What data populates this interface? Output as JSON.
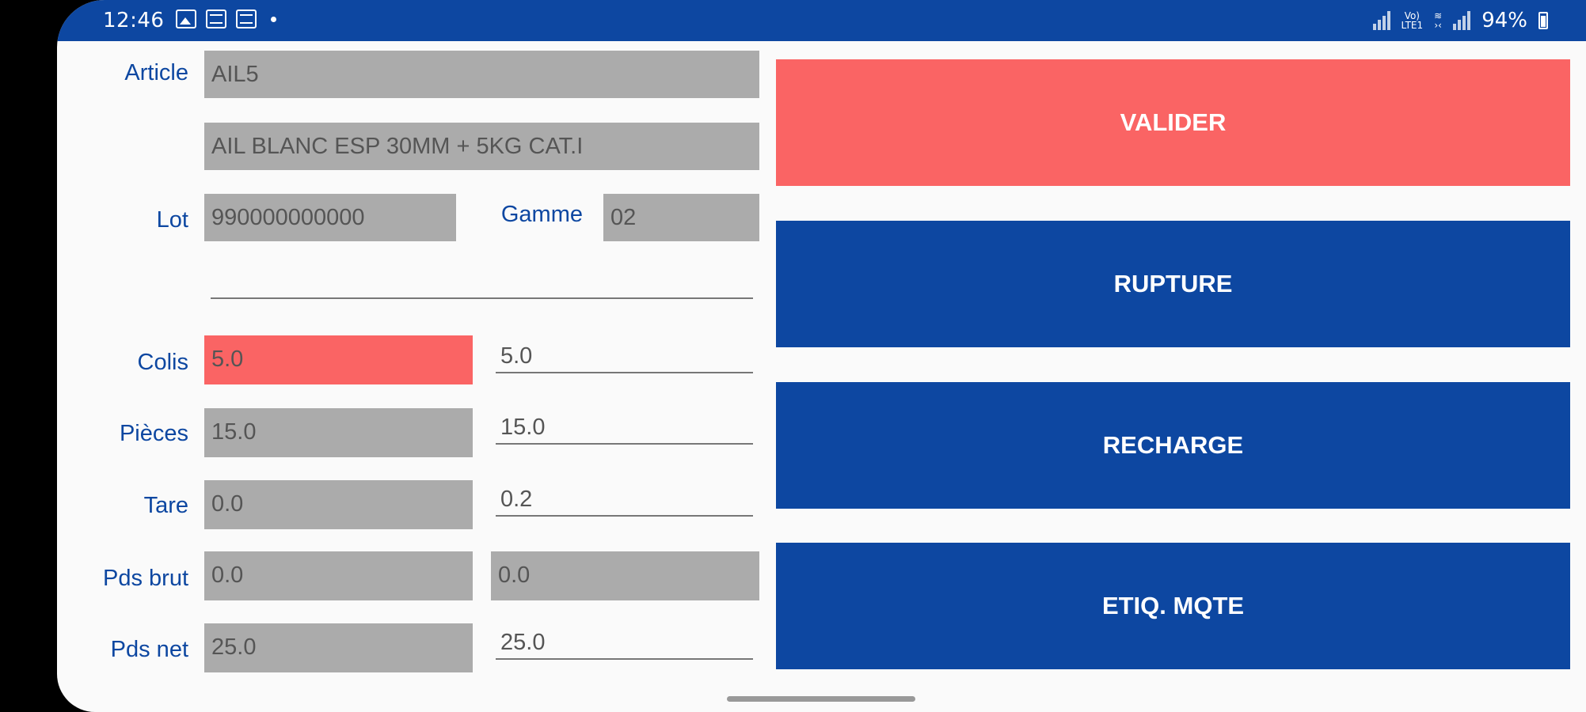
{
  "status_bar": {
    "time": "12:46",
    "left_icons": [
      "gallery-icon",
      "message-icon",
      "message-icon"
    ],
    "battery": "94%"
  },
  "form": {
    "article_label": "Article",
    "article_code": "AIL5",
    "article_description": "AIL BLANC ESP 30MM + 5KG CAT.I",
    "lot_label": "Lot",
    "lot_value": "990000000000",
    "gamme_label": "Gamme",
    "gamme_value": "02",
    "rows": [
      {
        "label": "Colis",
        "value": "5.0",
        "entry": "5.0"
      },
      {
        "label": "Pièces",
        "value": "15.0",
        "entry": "15.0"
      },
      {
        "label": "Tare",
        "value": "0.0",
        "entry": "0.2"
      },
      {
        "label": "Pds brut",
        "value": "0.0",
        "entry": "0.0"
      },
      {
        "label": "Pds net",
        "value": "25.0",
        "entry": "25.0"
      }
    ]
  },
  "actions": {
    "valider": "VALIDER",
    "rupture": "RUPTURE",
    "recharge": "RECHARGE",
    "etiq_mqte": "ETIQ. MQTE"
  },
  "colors": {
    "primary": "#0d47a1",
    "alert": "#fa6464",
    "field_gray": "#ababab"
  }
}
